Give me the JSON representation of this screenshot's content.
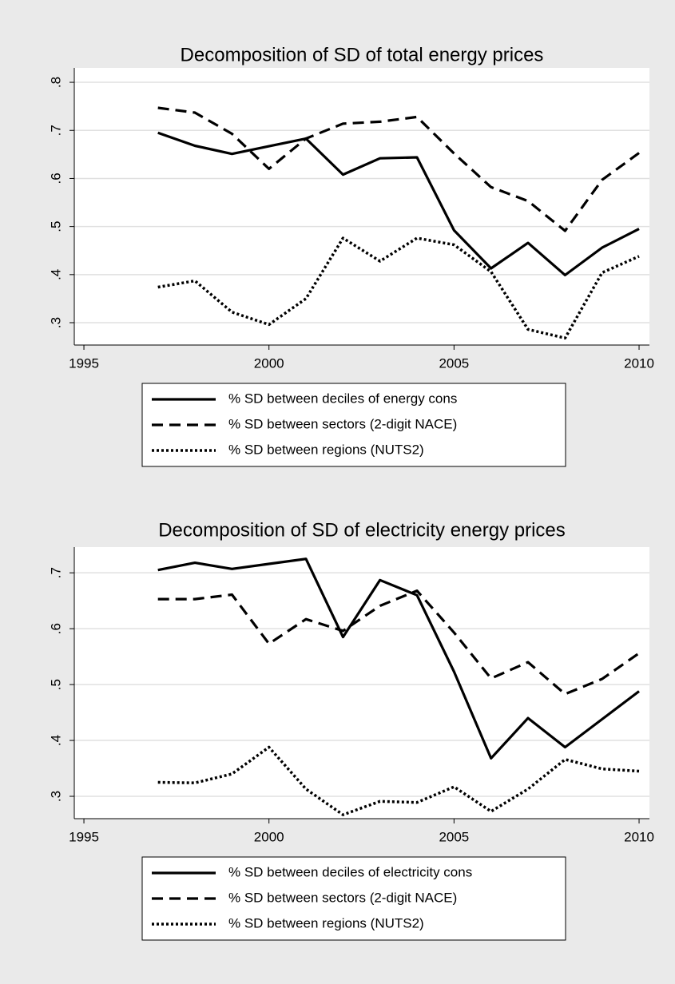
{
  "chart_data": [
    {
      "type": "line",
      "title": "Decomposition of SD of total energy prices",
      "x": [
        1997,
        1998,
        1999,
        2000,
        2001,
        2002,
        2003,
        2004,
        2005,
        2006,
        2007,
        2008,
        2009,
        2010
      ],
      "xlim": [
        1994.74,
        2010.28
      ],
      "xticks": [
        1995,
        2000,
        2005,
        2010
      ],
      "ylim": [
        0.2535,
        0.83
      ],
      "yticks": [
        {
          "value": 0.3,
          "label": ".3"
        },
        {
          "value": 0.4,
          "label": ".4"
        },
        {
          "value": 0.5,
          "label": ".5"
        },
        {
          "value": 0.6,
          "label": ".6"
        },
        {
          "value": 0.7,
          "label": ".7"
        },
        {
          "value": 0.8,
          "label": ".8"
        }
      ],
      "grid": true,
      "legend": "bottom",
      "series": [
        {
          "name": "% SD between deciles of energy cons",
          "color": "#000000",
          "style": "solid",
          "values": [
            0.695,
            0.668,
            0.651,
            0.667,
            0.683,
            0.608,
            0.642,
            0.644,
            0.492,
            0.413,
            0.466,
            0.399,
            0.456,
            0.495
          ]
        },
        {
          "name": "% SD between sectors (2-digit NACE)",
          "color": "#000000",
          "style": "dashed",
          "values": [
            0.747,
            0.737,
            0.693,
            0.62,
            0.683,
            0.714,
            0.718,
            0.728,
            0.652,
            0.582,
            0.553,
            0.491,
            0.597,
            0.653
          ]
        },
        {
          "name": "% SD between regions (NUTS2)",
          "color": "#000000",
          "style": "dotted",
          "values": [
            0.374,
            0.387,
            0.322,
            0.296,
            0.35,
            0.476,
            0.428,
            0.476,
            0.462,
            0.406,
            0.286,
            0.268,
            0.404,
            0.438
          ]
        }
      ]
    },
    {
      "type": "line",
      "title": "Decomposition of SD of electricity energy prices",
      "x": [
        1997,
        1998,
        1999,
        2000,
        2001,
        2002,
        2003,
        2004,
        2005,
        2006,
        2007,
        2008,
        2009,
        2010
      ],
      "xlim": [
        1994.74,
        2010.28
      ],
      "xticks": [
        1995,
        2000,
        2005,
        2010
      ],
      "ylim": [
        0.26,
        0.746
      ],
      "yticks": [
        {
          "value": 0.3,
          "label": ".3"
        },
        {
          "value": 0.4,
          "label": ".4"
        },
        {
          "value": 0.5,
          "label": ".5"
        },
        {
          "value": 0.6,
          "label": ".6"
        },
        {
          "value": 0.7,
          "label": ".7"
        }
      ],
      "grid": true,
      "legend": "bottom",
      "series": [
        {
          "name": "% SD between deciles of electricity cons",
          "color": "#000000",
          "style": "solid",
          "values": [
            0.705,
            0.718,
            0.707,
            0.716,
            0.725,
            0.585,
            0.687,
            0.66,
            0.523,
            0.368,
            0.44,
            0.388,
            0.438,
            0.488
          ]
        },
        {
          "name": "% SD between sectors (2-digit NACE)",
          "color": "#000000",
          "style": "dashed",
          "values": [
            0.653,
            0.653,
            0.661,
            0.573,
            0.617,
            0.596,
            0.641,
            0.668,
            0.593,
            0.511,
            0.54,
            0.483,
            0.51,
            0.556
          ]
        },
        {
          "name": "% SD between regions (NUTS2)",
          "color": "#000000",
          "style": "dotted",
          "values": [
            0.325,
            0.324,
            0.34,
            0.388,
            0.313,
            0.267,
            0.291,
            0.289,
            0.317,
            0.273,
            0.313,
            0.366,
            0.349,
            0.345
          ]
        }
      ]
    }
  ]
}
